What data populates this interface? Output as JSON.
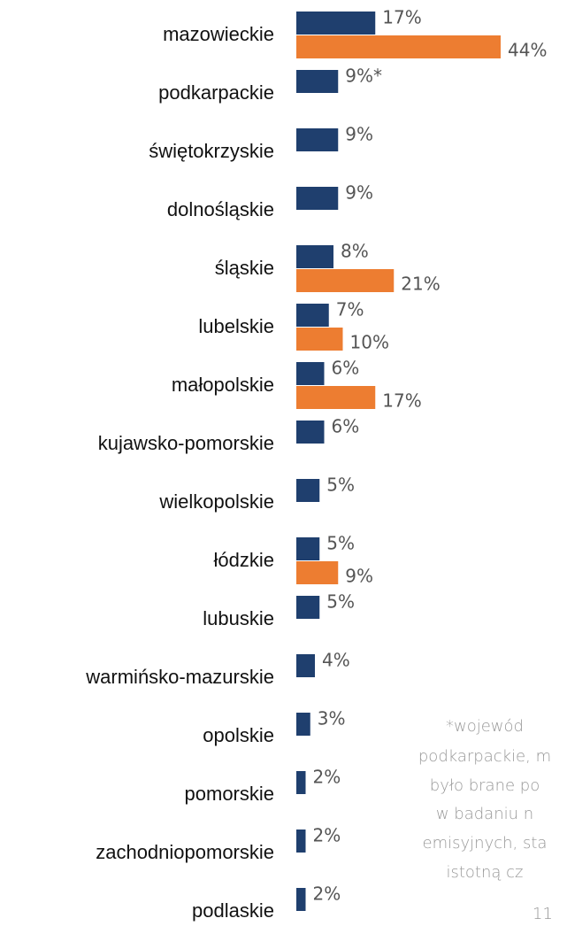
{
  "chart_data": {
    "type": "bar",
    "orientation": "horizontal",
    "categories": [
      "mazowieckie",
      "podkarpackie",
      "świętokrzyskie",
      "dolnośląskie",
      "śląskie",
      "lubelskie",
      "małopolskie",
      "kujawsko-pomorskie",
      "wielkopolskie",
      "łódzkie",
      "lubuskie",
      "warmińsko-mazurskie",
      "opolskie",
      "pomorskie",
      "zachodniopomorskie",
      "podlaskie"
    ],
    "series": [
      {
        "color": "#1f3f6e",
        "values": [
          17,
          9,
          9,
          9,
          8,
          7,
          6,
          6,
          5,
          5,
          5,
          4,
          3,
          2,
          2,
          2
        ],
        "value_labels": [
          "17%",
          "9%*",
          "9%",
          "9%",
          "8%",
          "7%",
          "6%",
          "6%",
          "5%",
          "5%",
          "5%",
          "4%",
          "3%",
          "2%",
          "2%",
          "2%"
        ]
      },
      {
        "color": "#ed7d31",
        "values": [
          44,
          null,
          null,
          null,
          21,
          10,
          17,
          null,
          null,
          9,
          null,
          null,
          null,
          null,
          null,
          null
        ],
        "value_labels": [
          "44%",
          null,
          null,
          null,
          "21%",
          "10%",
          "17%",
          null,
          null,
          "9%",
          null,
          null,
          null,
          null,
          null,
          null
        ]
      }
    ]
  },
  "footnote": [
    "*wojewód",
    "podkarpackie, m",
    "było brane po",
    "w badaniu n",
    "emisyjnych, sta",
    "istotną cz"
  ],
  "page_number": "11"
}
